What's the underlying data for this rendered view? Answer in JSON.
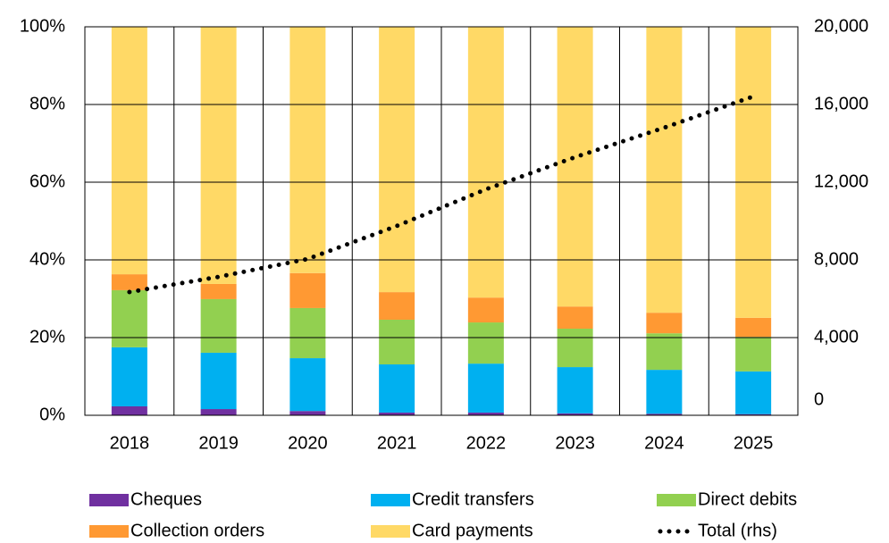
{
  "chart_data": {
    "type": "bar",
    "stacked": true,
    "categories": [
      "2018",
      "2019",
      "2020",
      "2021",
      "2022",
      "2023",
      "2024",
      "2025"
    ],
    "series": [
      {
        "name": "Cheques",
        "color": "#7030a0",
        "values": [
          2.3,
          1.6,
          1.1,
          0.7,
          0.7,
          0.5,
          0.4,
          0.3
        ]
      },
      {
        "name": "Credit transfers",
        "color": "#00b0f0",
        "values": [
          15.2,
          14.5,
          13.6,
          12.4,
          12.6,
          11.9,
          11.3,
          11.0
        ]
      },
      {
        "name": "Direct debits",
        "color": "#92d050",
        "values": [
          14.7,
          13.8,
          12.9,
          11.5,
          10.6,
          9.9,
          9.4,
          8.9
        ]
      },
      {
        "name": "Collection orders",
        "color": "#ff9933",
        "values": [
          4.1,
          3.9,
          9.0,
          7.1,
          6.4,
          5.7,
          5.3,
          4.9
        ]
      },
      {
        "name": "Card payments",
        "color": "#ffd966",
        "values": [
          63.7,
          66.2,
          63.4,
          68.3,
          69.7,
          72.0,
          73.6,
          74.9
        ]
      },
      {
        "name": "Total (rhs)",
        "color": "#000000",
        "type": "line",
        "axis": "y2",
        "values": [
          6345,
          7126,
          8046,
          9747,
          11632,
          13287,
          14805,
          16414
        ]
      }
    ],
    "ylim": [
      0,
      100
    ],
    "yticks": [
      {
        "value": 0,
        "label": "0%"
      },
      {
        "value": 20,
        "label": "20%"
      },
      {
        "value": 40,
        "label": "40%"
      },
      {
        "value": 60,
        "label": "60%"
      },
      {
        "value": 80,
        "label": "80%"
      },
      {
        "value": 100,
        "label": "100%"
      }
    ],
    "y2lim": [
      0,
      20000
    ],
    "y2ticks": [
      0,
      {
        "value": 4000,
        "label": "4,000"
      },
      {
        "value": 8000,
        "label": "8,000"
      },
      {
        "value": 12000,
        "label": "12,000"
      },
      {
        "value": 16000,
        "label": "16,000"
      },
      {
        "value": 20000,
        "label": "20,000"
      }
    ],
    "grid": true,
    "legend": "bottom"
  }
}
